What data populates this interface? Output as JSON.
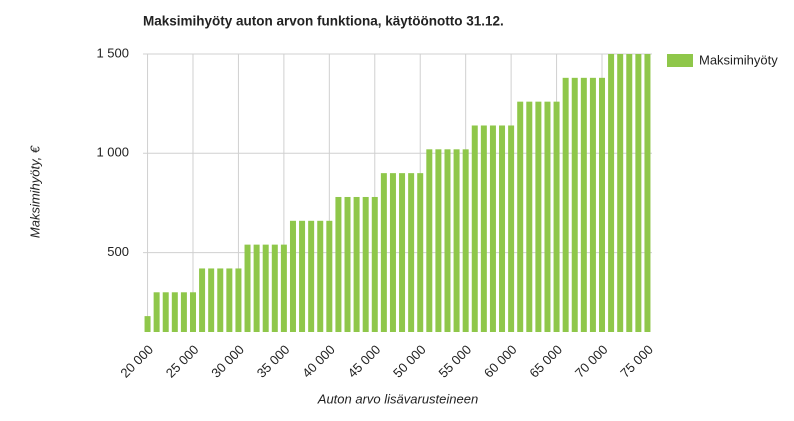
{
  "chart_data": {
    "type": "bar",
    "title": "Maksimihyöty auton arvon funktiona, käytöönotto 31.12.",
    "x_label": "Auton arvo lisävarusteineen",
    "y_label": "Maksimihyöty, €",
    "categories": [
      "20 000",
      null,
      null,
      null,
      null,
      "25 000",
      null,
      null,
      null,
      null,
      "30 000",
      null,
      null,
      null,
      null,
      "35 000",
      null,
      null,
      null,
      null,
      "40 000",
      null,
      null,
      null,
      null,
      "45 000",
      null,
      null,
      null,
      null,
      "50 000",
      null,
      null,
      null,
      null,
      "55 000",
      null,
      null,
      null,
      null,
      "60 000",
      null,
      null,
      null,
      null,
      "65 000",
      null,
      null,
      null,
      null,
      "70 000",
      null,
      null,
      null,
      null,
      "75 000"
    ],
    "series": [
      {
        "name": "Maksimihyöty",
        "color": "#8fc74a",
        "values": [
          180,
          300,
          300,
          300,
          300,
          300,
          420,
          420,
          420,
          420,
          420,
          540,
          540,
          540,
          540,
          540,
          660,
          660,
          660,
          660,
          660,
          780,
          780,
          780,
          780,
          780,
          900,
          900,
          900,
          900,
          900,
          1020,
          1020,
          1020,
          1020,
          1020,
          1140,
          1140,
          1140,
          1140,
          1140,
          1260,
          1260,
          1260,
          1260,
          1260,
          1380,
          1380,
          1380,
          1380,
          1380,
          1500,
          1500,
          1500,
          1500,
          1500
        ]
      }
    ],
    "ylim": [
      100,
      1500
    ],
    "yticks": [
      500,
      {
        "value": 1000,
        "label": "1 000"
      },
      {
        "value": 1500,
        "label": "1 500"
      }
    ],
    "grid": true,
    "legend": "right"
  }
}
